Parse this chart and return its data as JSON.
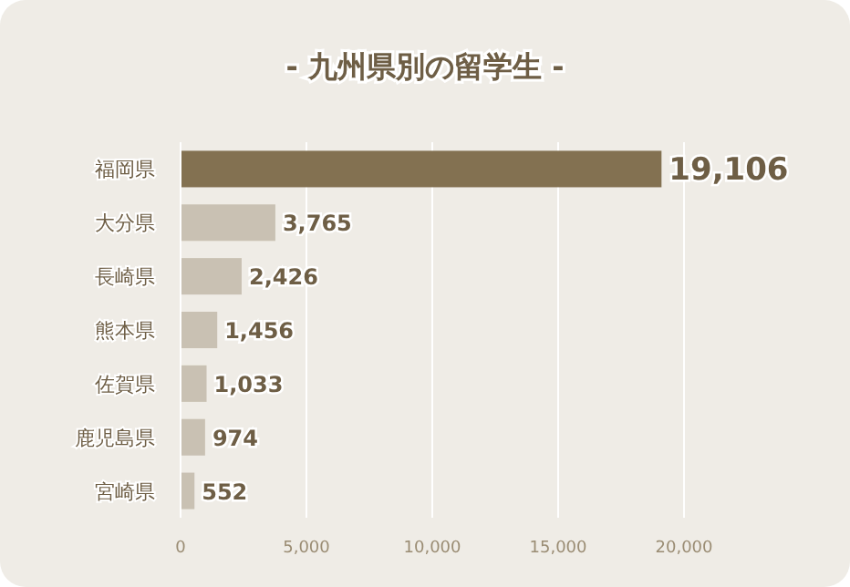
{
  "chart_data": {
    "type": "bar",
    "orientation": "horizontal",
    "title": "- 九州県別の留学生 -",
    "categories": [
      "福岡県",
      "大分県",
      "長崎県",
      "熊本県",
      "佐賀県",
      "鹿児島県",
      "宮崎県"
    ],
    "values": [
      19106,
      3765,
      2426,
      1456,
      1033,
      974,
      552
    ],
    "colors": [
      "#837151",
      "#c9c1b3",
      "#c9c1b3",
      "#c9c1b3",
      "#c9c1b3",
      "#c9c1b3",
      "#c9c1b3"
    ],
    "value_labels": [
      "19,106",
      "3,765",
      "2,426",
      "1,456",
      "1,033",
      "974",
      "552"
    ],
    "xlim": [
      0,
      20000
    ],
    "xticks": [
      0,
      {
        "value": 5000,
        "label": "5,000"
      },
      {
        "value": 10000,
        "label": "10,000"
      },
      {
        "value": 15000,
        "label": "15,000"
      },
      {
        "value": 20000,
        "label": "20,000"
      }
    ],
    "grid": "x"
  }
}
